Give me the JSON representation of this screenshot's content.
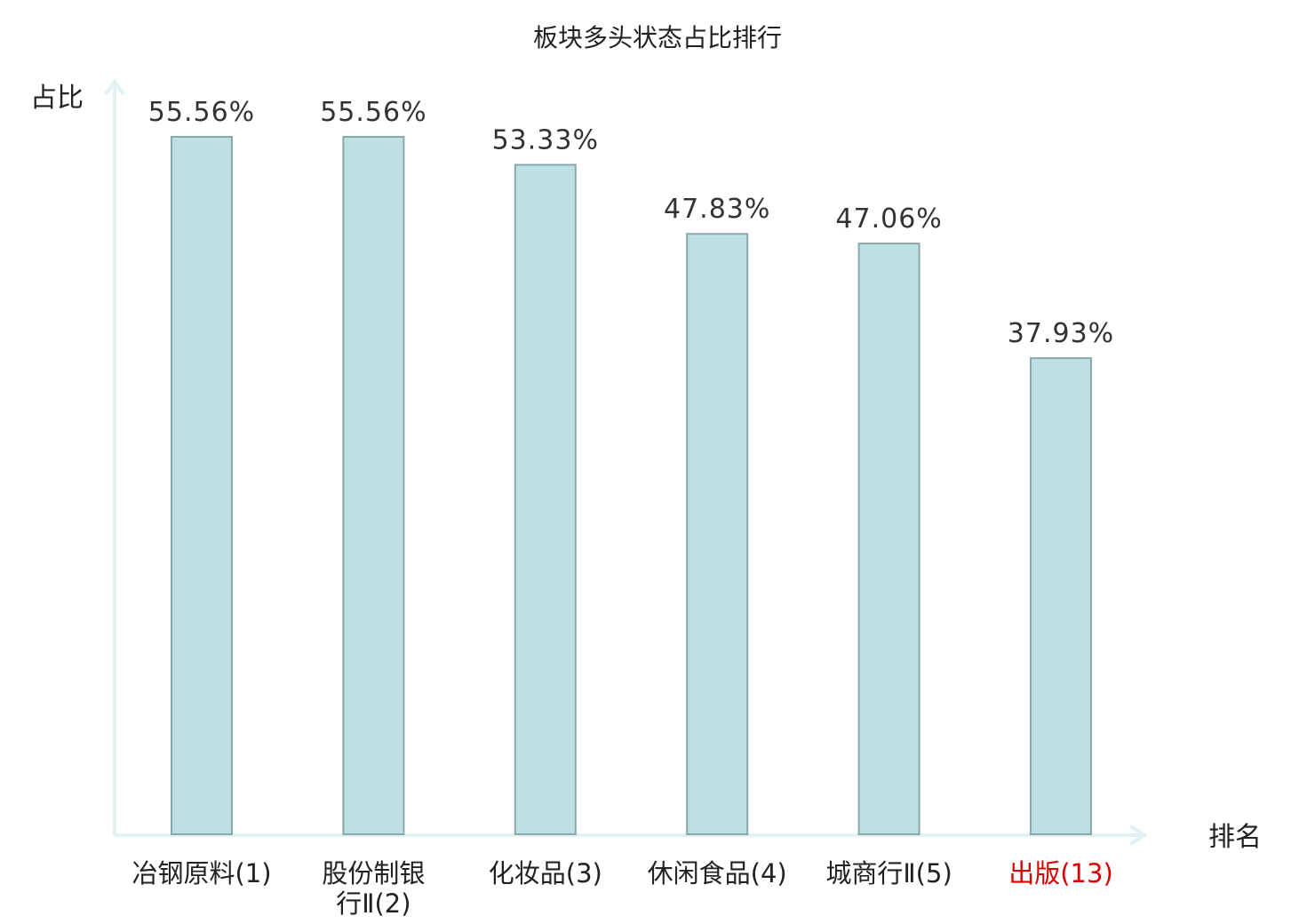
{
  "chart_data": {
    "type": "bar",
    "title": "板块多头状态占比排行",
    "ylabel": "占比",
    "xlabel": "排名",
    "categories": [
      [
        "冶钢原料(1)"
      ],
      [
        "股份制银",
        "行Ⅱ(2)"
      ],
      [
        "化妆品(3)"
      ],
      [
        "休闲食品(4)"
      ],
      [
        "城商行Ⅱ(5)"
      ],
      [
        "出版(13)"
      ]
    ],
    "values": [
      55.56,
      55.56,
      53.33,
      47.83,
      47.06,
      37.93
    ],
    "value_labels": [
      "55.56%",
      "55.56%",
      "53.33%",
      "47.83%",
      "47.06%",
      "37.93%"
    ],
    "highlight_index": 5,
    "ylim": [
      0,
      55.56
    ],
    "grid": false,
    "legend": "none",
    "colors": {
      "bar_fill": "#bde0e3",
      "bar_stroke": "#8aa8aa",
      "axis": "#e0f2f1",
      "text": "#222222",
      "value_text": "#333333",
      "highlight": "#dd0000"
    }
  }
}
